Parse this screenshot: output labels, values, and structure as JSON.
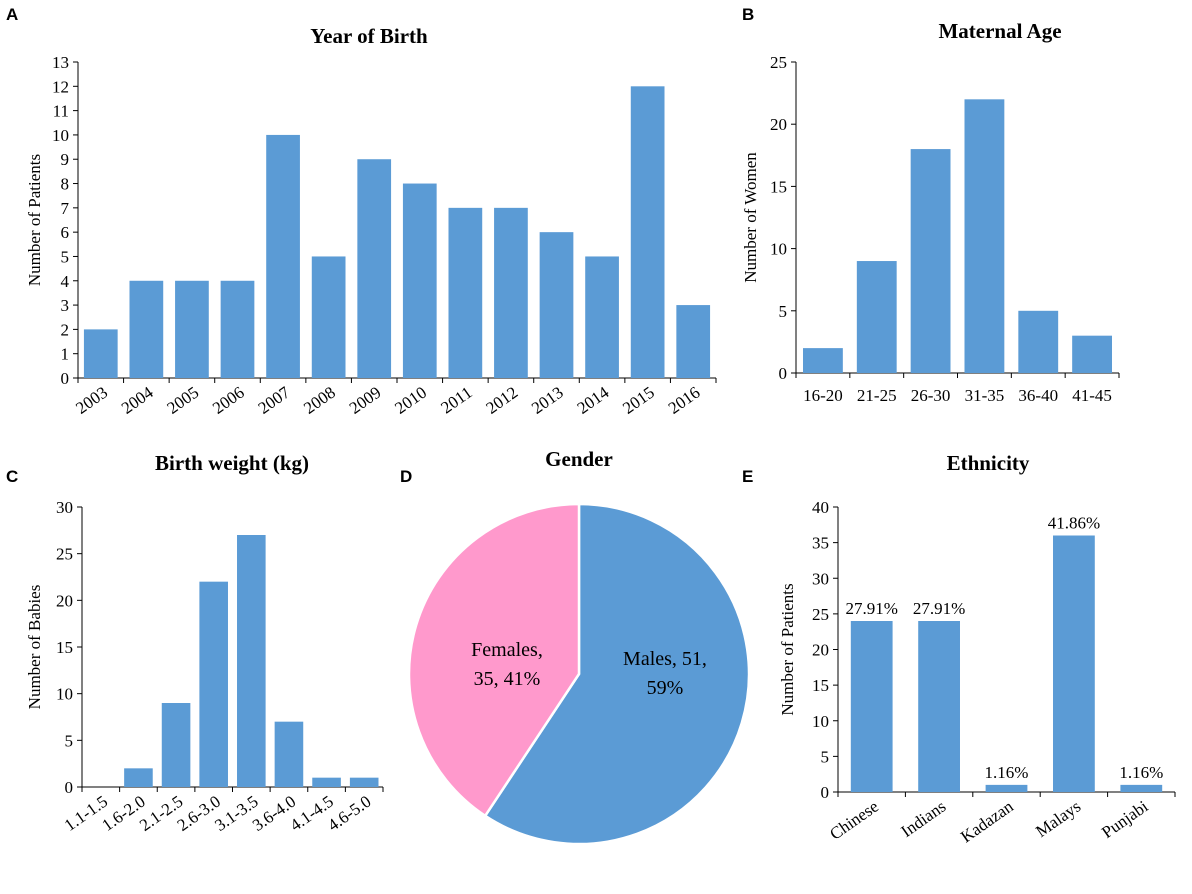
{
  "colors": {
    "bar": "#5b9bd5",
    "pie_male": "#5b9bd5",
    "pie_female": "#ff99cc",
    "axis": "#000000"
  },
  "chart_data": [
    {
      "id": "A",
      "panel": "A",
      "type": "bar",
      "title": "Year of Birth",
      "xlabel": "",
      "ylabel": "Number of Patients",
      "categories": [
        "2003",
        "2004",
        "2005",
        "2006",
        "2007",
        "2008",
        "2009",
        "2010",
        "2011",
        "2012",
        "2013",
        "2014",
        "2015",
        "2016"
      ],
      "values": [
        2,
        4,
        4,
        4,
        10,
        5,
        9,
        8,
        7,
        7,
        6,
        5,
        12,
        3
      ],
      "ylim": [
        0,
        13
      ],
      "ytick_step": 1,
      "yticks": [
        "0",
        "1",
        "2",
        "3",
        "4",
        "5",
        "6",
        "7",
        "8",
        "9",
        "10",
        "11",
        "12",
        "13"
      ],
      "grid": false,
      "rotated_xticks": true
    },
    {
      "id": "B",
      "panel": "B",
      "type": "bar",
      "title": "Maternal Age",
      "xlabel": "",
      "ylabel": "Number of Women",
      "categories": [
        "16-20",
        "21-25",
        "26-30",
        "31-35",
        "36-40",
        "41-45"
      ],
      "values": [
        2,
        9,
        18,
        22,
        5,
        3
      ],
      "ylim": [
        0,
        25
      ],
      "ytick_step": 5,
      "yticks": [
        "0",
        "5",
        "10",
        "15",
        "20",
        "25"
      ],
      "grid": false,
      "rotated_xticks": false
    },
    {
      "id": "C",
      "panel": "C",
      "type": "bar",
      "title": "Birth weight (kg)",
      "xlabel": "",
      "ylabel": "Number of Babies",
      "categories": [
        "1.1-1.5",
        "1.6-2.0",
        "2.1-2.5",
        "2.6-3.0",
        "3.1-3.5",
        "3.6-4.0",
        "4.1-4.5",
        "4.6-5.0"
      ],
      "values": [
        0,
        2,
        9,
        22,
        27,
        7,
        1,
        1
      ],
      "ylim": [
        0,
        30
      ],
      "ytick_step": 5,
      "yticks": [
        "0",
        "5",
        "10",
        "15",
        "20",
        "25",
        "30"
      ],
      "grid": false,
      "rotated_xticks": true
    },
    {
      "id": "D",
      "panel": "D",
      "type": "pie",
      "title": "Gender",
      "slices": [
        {
          "name": "Males",
          "value": 51,
          "percent": 59,
          "label_line1": "Males, 51,",
          "label_line2": "59%"
        },
        {
          "name": "Females",
          "value": 35,
          "percent": 41,
          "label_line1": "Females,",
          "label_line2": "35, 41%"
        }
      ]
    },
    {
      "id": "E",
      "panel": "E",
      "type": "bar",
      "title": "Ethnicity",
      "xlabel": "",
      "ylabel": "Number of Patients",
      "categories": [
        "Chinese",
        "Indians",
        "Kadazan",
        "Malays",
        "Punjabi"
      ],
      "values": [
        24,
        24,
        1,
        36,
        1
      ],
      "data_labels": [
        "27.91%",
        "27.91%",
        "1.16%",
        "41.86%",
        "1.16%"
      ],
      "ylim": [
        0,
        40
      ],
      "ytick_step": 5,
      "yticks": [
        "0",
        "5",
        "10",
        "15",
        "20",
        "25",
        "30",
        "35",
        "40"
      ],
      "grid": false,
      "rotated_xticks": true
    }
  ]
}
